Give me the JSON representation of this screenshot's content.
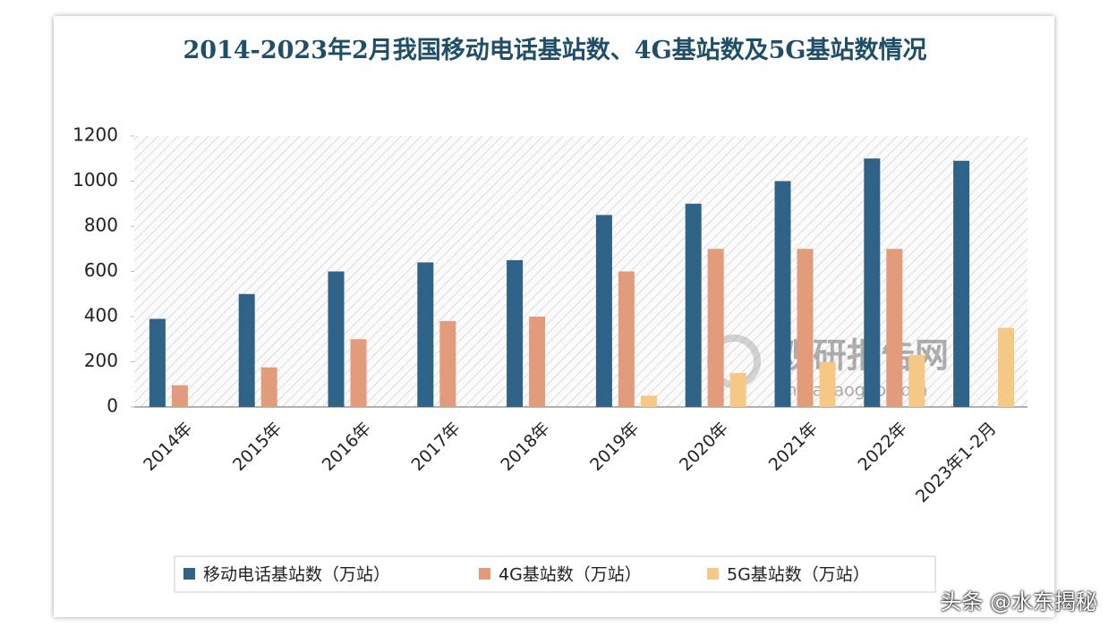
{
  "chart_data": {
    "type": "bar",
    "title": "2014-2023年2月我国移动电话基站数、4G基站数及5G基站数情况",
    "categories": [
      "2014年",
      "2015年",
      "2016年",
      "2017年",
      "2018年",
      "2019年",
      "2020年",
      "2021年",
      "2022年",
      "2023年1-2月"
    ],
    "series": [
      {
        "name": "移动电话基站数（万站）",
        "color": "#2e6287",
        "values": [
          390,
          500,
          600,
          640,
          650,
          850,
          900,
          1000,
          1100,
          1090
        ]
      },
      {
        "name": "4G基站数（万站）",
        "color": "#e29b7b",
        "values": [
          96,
          175,
          300,
          380,
          400,
          600,
          700,
          700,
          700,
          null
        ]
      },
      {
        "name": "5G基站数（万站）",
        "color": "#f6c886",
        "values": [
          null,
          null,
          null,
          null,
          null,
          50,
          150,
          200,
          230,
          350
        ]
      }
    ],
    "ylim": [
      0,
      1200
    ],
    "yticks": [
      0,
      200,
      400,
      600,
      800,
      1000,
      1200
    ],
    "legend": "bottom",
    "watermark": {
      "name": "观研报告网",
      "url": "chinabaogao.com"
    }
  },
  "overlay_text": "头条 @水东揭秘"
}
